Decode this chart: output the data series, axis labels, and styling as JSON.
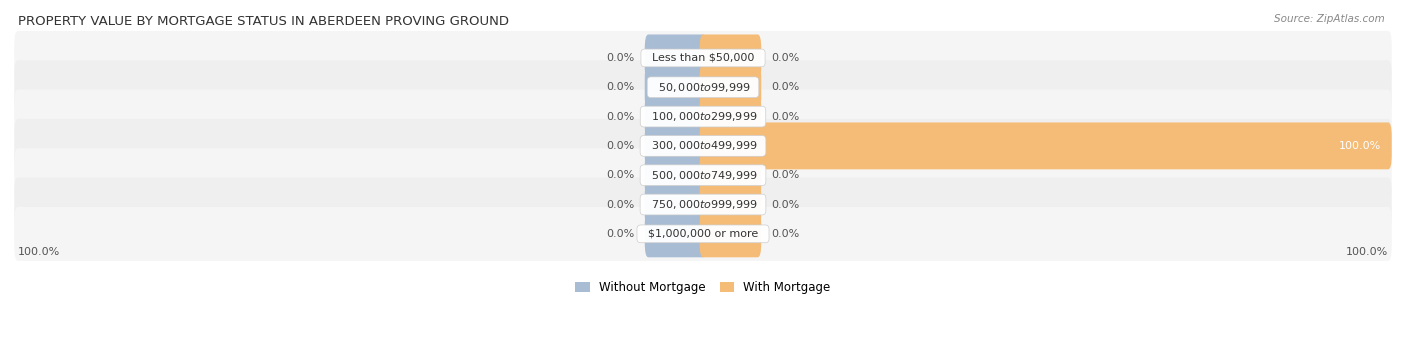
{
  "title": "PROPERTY VALUE BY MORTGAGE STATUS IN ABERDEEN PROVING GROUND",
  "source": "Source: ZipAtlas.com",
  "categories": [
    "Less than $50,000",
    "$50,000 to $99,999",
    "$100,000 to $299,999",
    "$300,000 to $499,999",
    "$500,000 to $749,999",
    "$750,000 to $999,999",
    "$1,000,000 or more"
  ],
  "without_mortgage": [
    0.0,
    0.0,
    0.0,
    0.0,
    0.0,
    0.0,
    0.0
  ],
  "with_mortgage": [
    0.0,
    0.0,
    0.0,
    100.0,
    0.0,
    0.0,
    0.0
  ],
  "without_mortgage_color": "#a8bcd4",
  "with_mortgage_color": "#f5bc78",
  "row_bg_even": "#f5f5f5",
  "row_bg_odd": "#efefef",
  "label_color": "#555555",
  "title_color": "#333333",
  "source_color": "#888888",
  "axis_label_left": "100.0%",
  "axis_label_right": "100.0%",
  "legend_without": "Without Mortgage",
  "legend_with": "With Mortgage",
  "min_bar_stub": 8.0,
  "xlim_left": -100,
  "xlim_right": 100
}
